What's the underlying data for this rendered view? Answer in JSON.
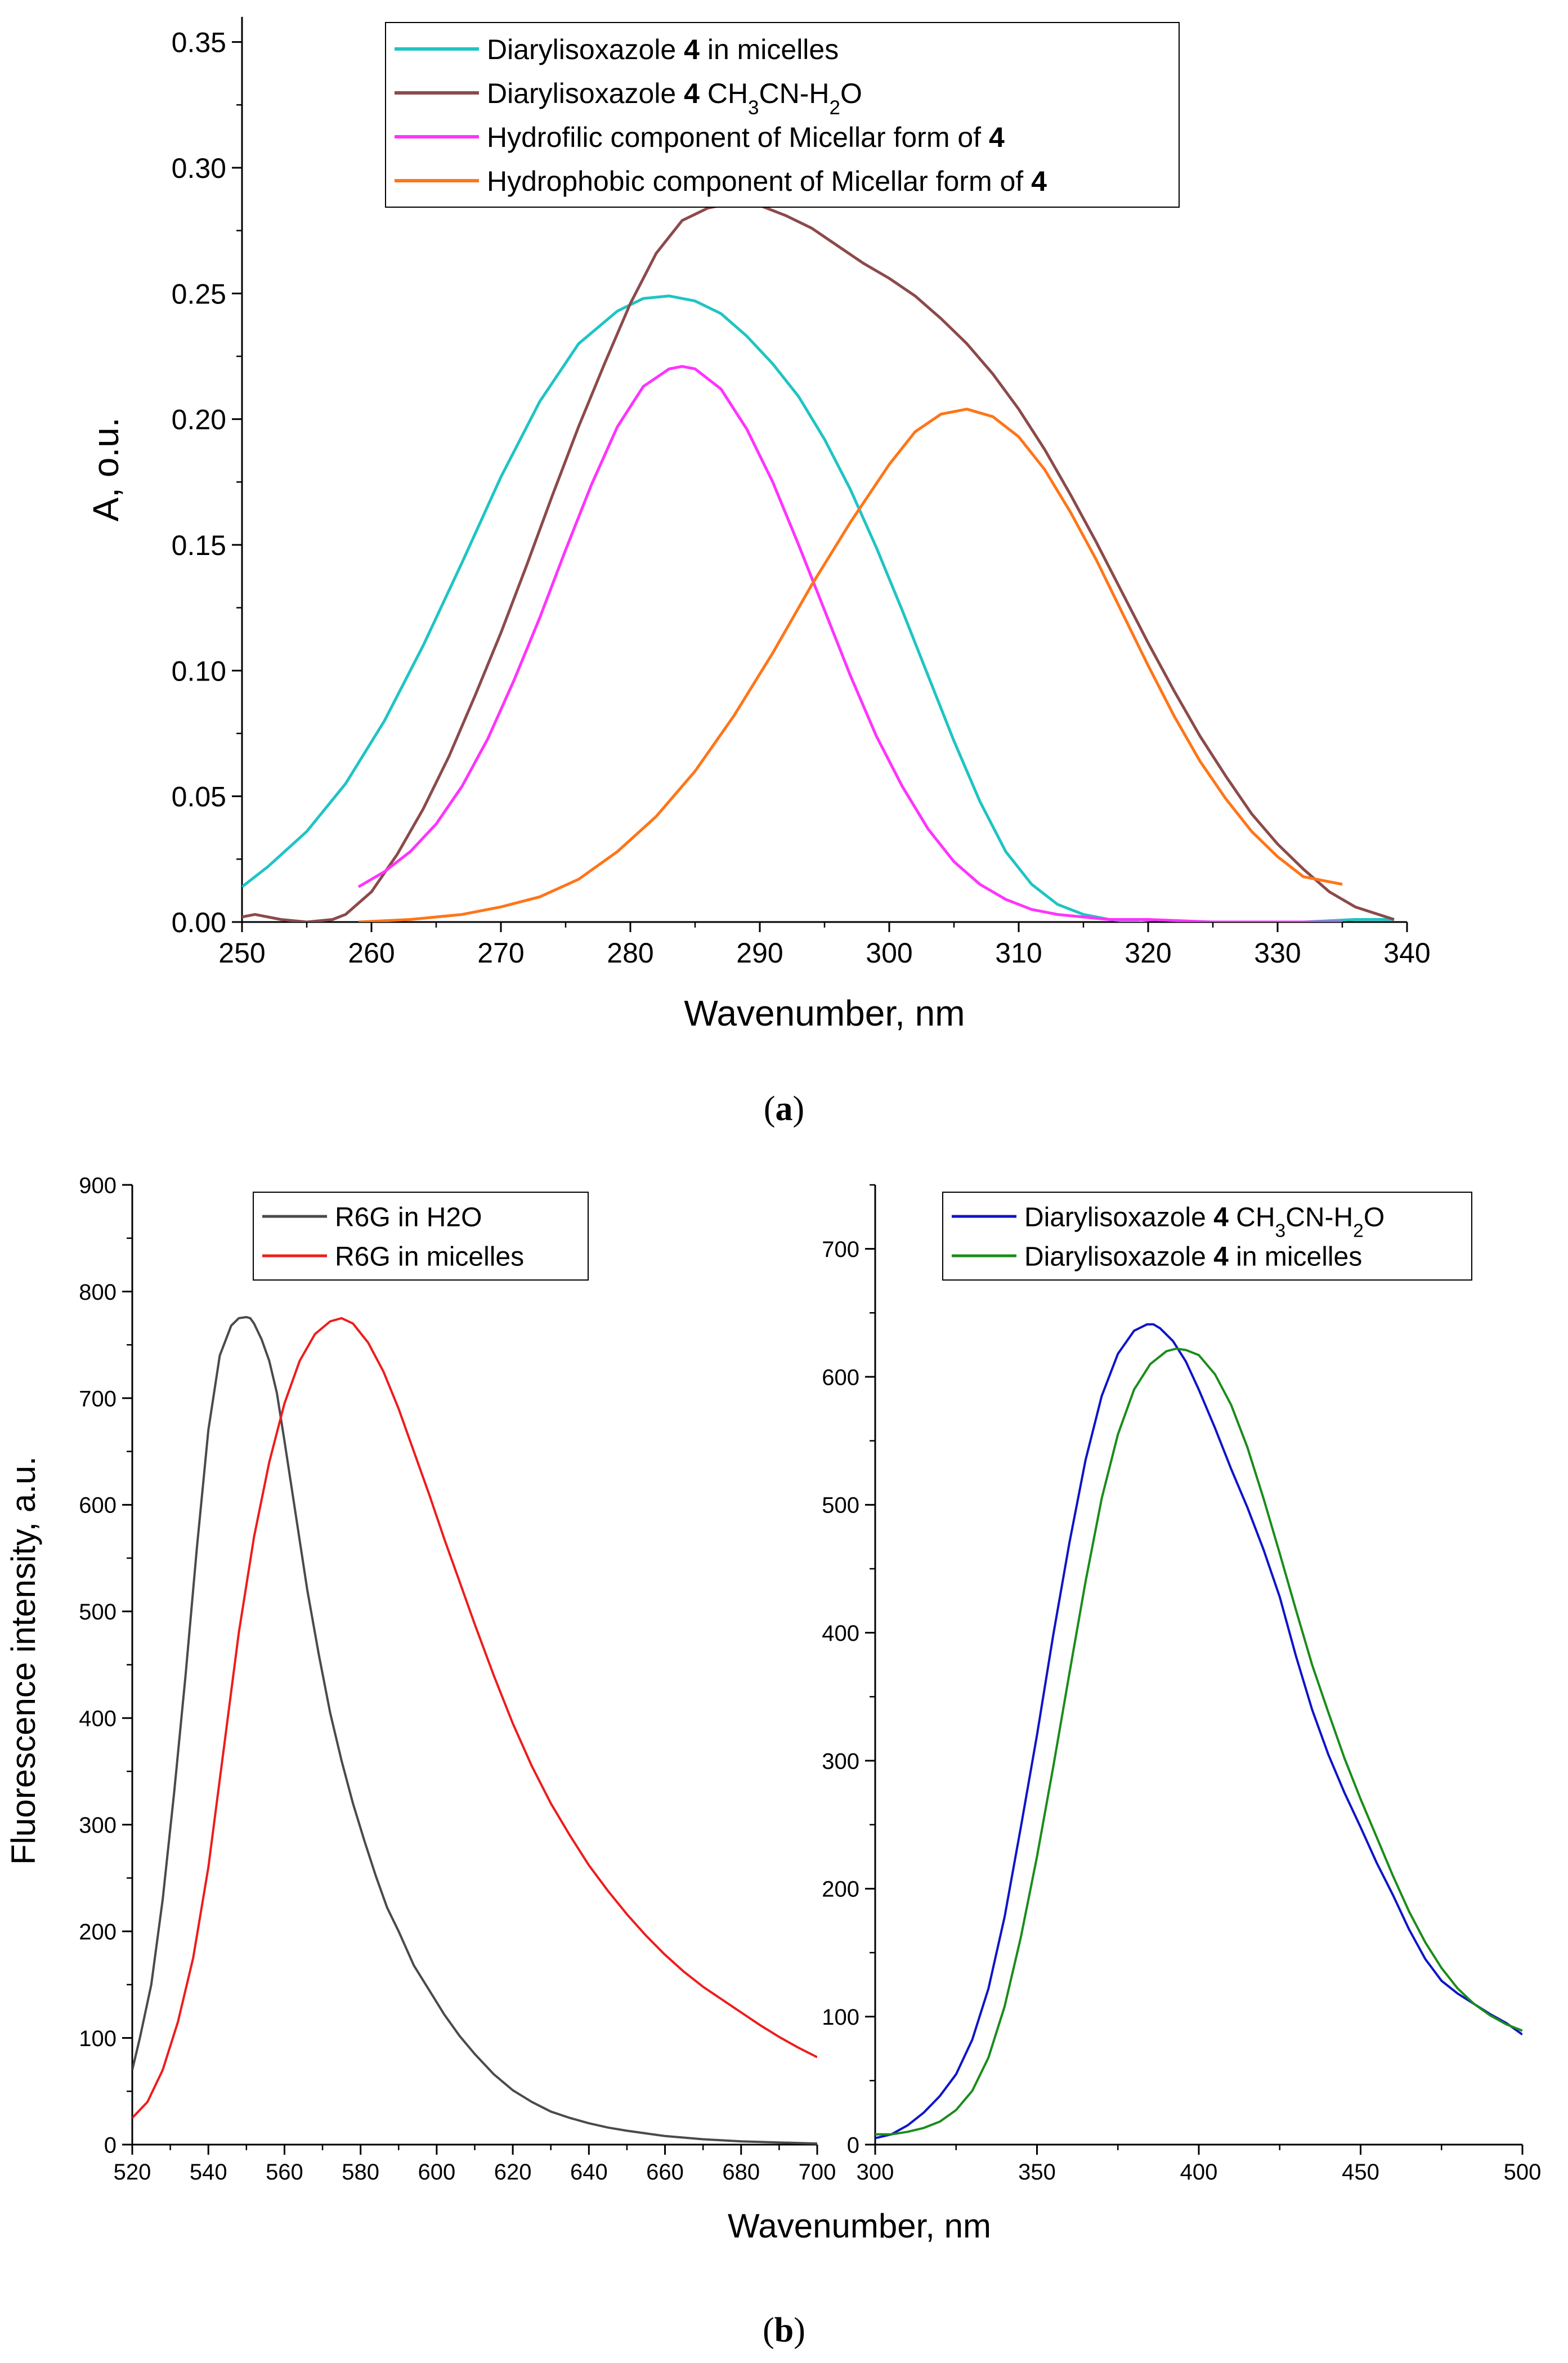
{
  "figure": {
    "panel_a_label": "a",
    "panel_b_label": "b"
  },
  "chart_data": [
    {
      "id": "a",
      "type": "line",
      "xlabel": "Wavenumber, nm",
      "ylabel": "A, o.u.",
      "xlim": [
        250,
        340
      ],
      "ylim": [
        0,
        0.36
      ],
      "xticks": [
        250,
        260,
        270,
        280,
        290,
        300,
        310,
        320,
        330,
        340
      ],
      "xtick_labels": [
        "250",
        "260",
        "270",
        "280",
        "290",
        "300",
        "310",
        "320",
        "330",
        "340"
      ],
      "yticks": [
        0,
        0.05,
        0.1,
        0.15,
        0.2,
        0.25,
        0.3,
        0.35
      ],
      "ytick_labels": [
        "0.00",
        "0.05",
        "0.10",
        "0.15",
        "0.20",
        "0.25",
        "0.30",
        "0.35"
      ],
      "legend_position": "top-center",
      "series": [
        {
          "name": "Diarylisoxazole 4 in micelles",
          "legend_parts": [
            {
              "t": "Diarylisoxazole "
            },
            {
              "t": "4",
              "b": true
            },
            {
              "t": " in micelles"
            }
          ],
          "color": "#1fc4c4",
          "x": [
            250,
            252,
            255,
            258,
            261,
            264,
            267,
            270,
            273,
            276,
            279,
            281,
            283,
            285,
            287,
            289,
            291,
            293,
            295,
            297,
            299,
            301,
            303,
            305,
            307,
            309,
            311,
            313,
            315,
            317,
            319,
            321,
            324,
            328,
            332,
            336,
            339
          ],
          "y": [
            0.014,
            0.022,
            0.036,
            0.055,
            0.08,
            0.11,
            0.143,
            0.177,
            0.207,
            0.23,
            0.243,
            0.248,
            0.249,
            0.247,
            0.242,
            0.233,
            0.222,
            0.209,
            0.192,
            0.172,
            0.149,
            0.124,
            0.098,
            0.072,
            0.048,
            0.028,
            0.015,
            0.007,
            0.003,
            0.001,
            0,
            -0.001,
            -0.001,
            0,
            0,
            0.001,
            0.001
          ]
        },
        {
          "name": "Diarylisoxazole 4 CH3CN-H2O",
          "legend_parts": [
            {
              "t": "Diarylisoxazole "
            },
            {
              "t": "4",
              "b": true
            },
            {
              "t": " CH"
            },
            {
              "t": "3",
              "sub": true
            },
            {
              "t": "CN-H"
            },
            {
              "t": "2",
              "sub": true
            },
            {
              "t": "O"
            }
          ],
          "color": "#8c4a4a",
          "x": [
            250,
            251,
            253,
            255,
            257,
            258,
            260,
            262,
            264,
            266,
            268,
            270,
            272,
            274,
            276,
            278,
            280,
            282,
            284,
            286,
            288,
            290,
            292,
            294,
            296,
            298,
            300,
            302,
            304,
            306,
            308,
            310,
            312,
            314,
            316,
            318,
            320,
            322,
            324,
            326,
            328,
            330,
            332,
            334,
            336,
            339
          ],
          "y": [
            0.002,
            0.003,
            0.001,
            0,
            0.001,
            0.003,
            0.012,
            0.027,
            0.045,
            0.066,
            0.09,
            0.115,
            0.142,
            0.17,
            0.197,
            0.222,
            0.246,
            0.266,
            0.279,
            0.284,
            0.286,
            0.285,
            0.281,
            0.276,
            0.269,
            0.262,
            0.256,
            0.249,
            0.24,
            0.23,
            0.218,
            0.204,
            0.188,
            0.17,
            0.151,
            0.131,
            0.111,
            0.092,
            0.074,
            0.058,
            0.043,
            0.031,
            0.021,
            0.012,
            0.006,
            0.001
          ]
        },
        {
          "name": "Hydrofilic component of Micellar form of 4",
          "legend_parts": [
            {
              "t": "Hydrofilic component of Micellar form of "
            },
            {
              "t": "4",
              "b": true
            }
          ],
          "color": "#ff33ff",
          "x": [
            259,
            261,
            263,
            265,
            267,
            269,
            271,
            273,
            275,
            277,
            279,
            281,
            283,
            284,
            285,
            287,
            289,
            291,
            293,
            295,
            297,
            299,
            301,
            303,
            305,
            307,
            309,
            311,
            313,
            315,
            317,
            320,
            325,
            330,
            335
          ],
          "y": [
            0.014,
            0.02,
            0.028,
            0.039,
            0.054,
            0.073,
            0.096,
            0.121,
            0.148,
            0.174,
            0.197,
            0.213,
            0.22,
            0.221,
            0.22,
            0.212,
            0.196,
            0.175,
            0.15,
            0.124,
            0.098,
            0.074,
            0.054,
            0.037,
            0.024,
            0.015,
            0.009,
            0.005,
            0.003,
            0.002,
            0.001,
            0.001,
            0,
            0,
            0
          ]
        },
        {
          "name": "Hydrophobic component of Micellar form of 4",
          "legend_parts": [
            {
              "t": "Hydrophobic component of Micellar form of "
            },
            {
              "t": "4",
              "b": true
            }
          ],
          "color": "#ff7518",
          "x": [
            259,
            263,
            267,
            270,
            273,
            276,
            279,
            282,
            285,
            288,
            291,
            294,
            297,
            300,
            302,
            304,
            306,
            308,
            310,
            312,
            314,
            316,
            318,
            320,
            322,
            324,
            326,
            328,
            330,
            332,
            335
          ],
          "y": [
            0,
            0.001,
            0.003,
            0.006,
            0.01,
            0.017,
            0.028,
            0.042,
            0.06,
            0.082,
            0.107,
            0.134,
            0.159,
            0.182,
            0.195,
            0.202,
            0.204,
            0.201,
            0.193,
            0.18,
            0.163,
            0.144,
            0.123,
            0.102,
            0.082,
            0.064,
            0.049,
            0.036,
            0.026,
            0.018,
            0.015
          ]
        }
      ]
    },
    {
      "id": "b-left",
      "type": "line",
      "xlabel": "Wavenumber, nm",
      "ylabel": "Fluorescence intensity, a.u.",
      "xlim": [
        520,
        700
      ],
      "ylim": [
        0,
        900
      ],
      "xticks": [
        520,
        540,
        560,
        580,
        600,
        620,
        640,
        660,
        680,
        700
      ],
      "xtick_labels": [
        "520",
        "540",
        "560",
        "580",
        "600",
        "620",
        "640",
        "660",
        "680",
        "700"
      ],
      "yticks": [
        0,
        100,
        200,
        300,
        400,
        500,
        600,
        700,
        800,
        900
      ],
      "ytick_labels": [
        "0",
        "100",
        "200",
        "300",
        "400",
        "500",
        "600",
        "700",
        "800",
        "900"
      ],
      "legend_position": "top-center",
      "series": [
        {
          "name": "R6G in H2O",
          "legend_parts": [
            {
              "t": "R6G in H2O"
            }
          ],
          "color": "#4a4a4a",
          "x": [
            520,
            522,
            525,
            528,
            531,
            534,
            537,
            540,
            543,
            546,
            548,
            550,
            551,
            552,
            554,
            556,
            558,
            560,
            563,
            566,
            569,
            572,
            575,
            578,
            581,
            584,
            587,
            590,
            594,
            598,
            602,
            606,
            610,
            615,
            620,
            625,
            630,
            635,
            640,
            645,
            650,
            660,
            670,
            680,
            690,
            700
          ],
          "y": [
            70,
            100,
            150,
            230,
            330,
            440,
            560,
            670,
            740,
            768,
            775,
            776,
            775,
            770,
            755,
            735,
            705,
            660,
            590,
            520,
            460,
            405,
            360,
            320,
            285,
            252,
            222,
            200,
            168,
            145,
            122,
            102,
            85,
            66,
            51,
            40,
            31,
            25,
            20,
            16,
            13,
            8,
            5,
            3,
            2,
            1
          ]
        },
        {
          "name": "R6G in micelles",
          "legend_parts": [
            {
              "t": "R6G in micelles"
            }
          ],
          "color": "#ee1c1c",
          "x": [
            520,
            524,
            528,
            532,
            536,
            540,
            544,
            548,
            552,
            556,
            560,
            564,
            568,
            572,
            575,
            578,
            582,
            586,
            590,
            594,
            598,
            602,
            606,
            610,
            615,
            620,
            625,
            630,
            635,
            640,
            645,
            650,
            655,
            660,
            665,
            670,
            675,
            680,
            685,
            690,
            695,
            700
          ],
          "y": [
            25,
            40,
            70,
            115,
            175,
            260,
            370,
            480,
            570,
            640,
            695,
            735,
            760,
            772,
            775,
            770,
            752,
            725,
            690,
            650,
            610,
            568,
            528,
            488,
            440,
            395,
            355,
            320,
            290,
            262,
            238,
            216,
            196,
            178,
            162,
            148,
            136,
            124,
            112,
            101,
            91,
            82
          ]
        }
      ]
    },
    {
      "id": "b-right",
      "type": "line",
      "xlabel": "",
      "ylabel": "",
      "xlim": [
        300,
        500
      ],
      "ylim": [
        0,
        750
      ],
      "xticks": [
        300,
        350,
        400,
        450,
        500
      ],
      "xtick_labels": [
        "300",
        "350",
        "400",
        "450",
        "500"
      ],
      "yticks": [
        0,
        100,
        200,
        300,
        400,
        500,
        600,
        700
      ],
      "ytick_labels": [
        "0",
        "100",
        "200",
        "300",
        "400",
        "500",
        "600",
        "700"
      ],
      "legend_position": "top-center",
      "series": [
        {
          "name": "Diarylisoxazole 4 CH3CN-H2O",
          "legend_parts": [
            {
              "t": "Diarylisoxazole "
            },
            {
              "t": "4",
              "b": true
            },
            {
              "t": " CH"
            },
            {
              "t": "3",
              "sub": true
            },
            {
              "t": "CN-H"
            },
            {
              "t": "2",
              "sub": true
            },
            {
              "t": "O"
            }
          ],
          "color": "#0e14c8",
          "x": [
            300,
            305,
            310,
            315,
            320,
            325,
            330,
            335,
            340,
            345,
            350,
            355,
            360,
            365,
            370,
            375,
            380,
            384,
            386,
            388,
            392,
            396,
            400,
            405,
            410,
            415,
            420,
            425,
            430,
            435,
            440,
            445,
            450,
            455,
            460,
            465,
            470,
            475,
            480,
            485,
            490,
            495,
            500
          ],
          "y": [
            5,
            8,
            15,
            25,
            38,
            55,
            82,
            122,
            178,
            248,
            320,
            398,
            470,
            535,
            585,
            618,
            636,
            641,
            641,
            638,
            628,
            612,
            590,
            560,
            528,
            498,
            465,
            428,
            382,
            340,
            305,
            275,
            248,
            220,
            195,
            168,
            145,
            128,
            118,
            110,
            102,
            95,
            86
          ]
        },
        {
          "name": "Diarylisoxazole 4  in micelles",
          "legend_parts": [
            {
              "t": "Diarylisoxazole "
            },
            {
              "t": "4",
              "b": true
            },
            {
              "t": "  in micelles"
            }
          ],
          "color": "#1a8c1a",
          "x": [
            300,
            305,
            310,
            315,
            320,
            325,
            330,
            335,
            340,
            345,
            350,
            355,
            360,
            365,
            370,
            375,
            380,
            385,
            390,
            393,
            396,
            400,
            405,
            410,
            415,
            420,
            425,
            430,
            435,
            440,
            445,
            450,
            455,
            460,
            465,
            470,
            475,
            480,
            485,
            490,
            495,
            500
          ],
          "y": [
            8,
            8,
            10,
            13,
            18,
            27,
            42,
            68,
            108,
            162,
            225,
            295,
            368,
            440,
            505,
            555,
            590,
            610,
            620,
            622,
            621,
            617,
            602,
            578,
            545,
            505,
            462,
            418,
            375,
            338,
            302,
            270,
            240,
            210,
            182,
            158,
            138,
            122,
            110,
            101,
            94,
            89
          ]
        }
      ]
    }
  ]
}
